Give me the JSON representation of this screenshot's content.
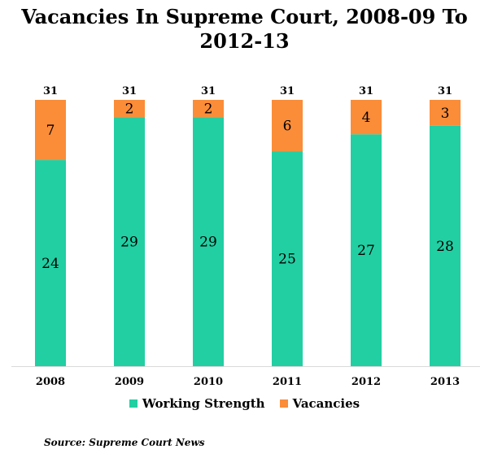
{
  "chart_data": {
    "type": "bar",
    "stacked": true,
    "title_line1": "Vacancies In Supreme Court, 2008-09 To",
    "title_line2": "2012-13",
    "categories": [
      "2008",
      "2009",
      "2010",
      "2011",
      "2012",
      "2013"
    ],
    "series": [
      {
        "name": "Working Strength",
        "values": [
          24,
          29,
          29,
          25,
          27,
          28
        ],
        "color": "#21cfa3"
      },
      {
        "name": "Vacancies",
        "values": [
          7,
          2,
          2,
          6,
          4,
          3
        ],
        "color": "#fb8c38"
      }
    ],
    "totals": [
      31,
      31,
      31,
      31,
      31,
      31
    ],
    "ylim": [
      0,
      31
    ],
    "legend_position": "bottom",
    "grid": false
  },
  "source": "Source: Supreme Court News"
}
